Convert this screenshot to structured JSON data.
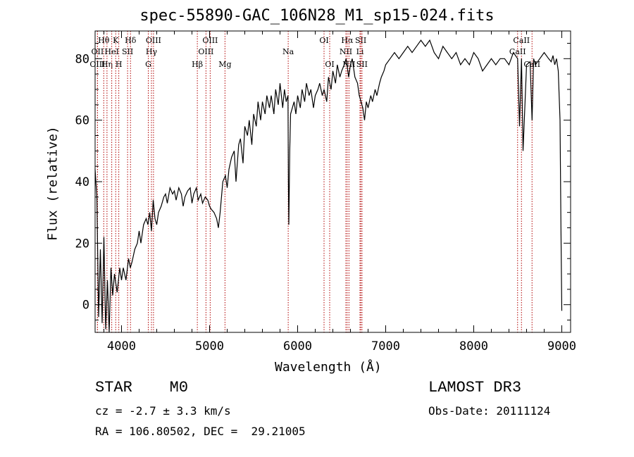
{
  "figure": {
    "title": "spec-55890-GAC_106N28_M1_sp15-024.fits",
    "classification": "STAR",
    "subclass": "M0",
    "survey": "LAMOST DR3",
    "cz": "cz = -2.7 ± 3.3 km/s",
    "obs_date": "Obs-Date: 20111124",
    "radec": "RA = 106.80502, DEC =  29.21005"
  },
  "chart_data": {
    "type": "line",
    "title": "spec-55890-GAC_106N28_M1_sp15-024.fits",
    "xlabel": "Wavelength (Å)",
    "ylabel": "Flux (relative)",
    "xlim": [
      3700,
      9100
    ],
    "ylim": [
      -9,
      89
    ],
    "xticks": [
      4000,
      5000,
      6000,
      7000,
      8000,
      9000
    ],
    "yticks": [
      0,
      20,
      40,
      60,
      80
    ],
    "series": [
      {
        "name": "flux",
        "x": [
          3700,
          3720,
          3740,
          3760,
          3780,
          3800,
          3820,
          3840,
          3860,
          3880,
          3900,
          3920,
          3950,
          3980,
          4000,
          4020,
          4050,
          4080,
          4100,
          4120,
          4150,
          4180,
          4200,
          4220,
          4250,
          4280,
          4300,
          4320,
          4340,
          4360,
          4380,
          4400,
          4420,
          4450,
          4480,
          4500,
          4520,
          4550,
          4580,
          4600,
          4620,
          4650,
          4680,
          4700,
          4720,
          4750,
          4780,
          4800,
          4820,
          4850,
          4870,
          4900,
          4920,
          4950,
          4980,
          5000,
          5020,
          5050,
          5080,
          5100,
          5120,
          5150,
          5180,
          5200,
          5220,
          5250,
          5280,
          5300,
          5330,
          5350,
          5380,
          5400,
          5430,
          5450,
          5480,
          5500,
          5530,
          5550,
          5580,
          5600,
          5630,
          5650,
          5680,
          5700,
          5730,
          5750,
          5780,
          5800,
          5830,
          5850,
          5870,
          5890,
          5895,
          5900,
          5910,
          5920,
          5940,
          5960,
          5980,
          6000,
          6030,
          6050,
          6080,
          6100,
          6130,
          6150,
          6180,
          6200,
          6230,
          6250,
          6280,
          6300,
          6330,
          6350,
          6380,
          6400,
          6430,
          6450,
          6480,
          6500,
          6530,
          6550,
          6570,
          6580,
          6600,
          6620,
          6650,
          6680,
          6700,
          6720,
          6740,
          6760,
          6780,
          6800,
          6830,
          6850,
          6880,
          6900,
          6930,
          6950,
          6980,
          7000,
          7050,
          7100,
          7150,
          7200,
          7250,
          7300,
          7350,
          7400,
          7450,
          7500,
          7550,
          7600,
          7650,
          7700,
          7750,
          7800,
          7850,
          7900,
          7950,
          8000,
          8050,
          8100,
          8150,
          8200,
          8250,
          8300,
          8350,
          8400,
          8450,
          8498,
          8520,
          8542,
          8560,
          8600,
          8640,
          8662,
          8680,
          8700,
          8750,
          8800,
          8850,
          8880,
          8900,
          8920,
          8940,
          8960,
          8980,
          8990,
          9000
        ],
        "y": [
          44,
          35,
          -4,
          18,
          -6,
          22,
          -8,
          8,
          -9,
          12,
          3,
          10,
          4,
          12,
          8,
          12,
          8,
          15,
          12,
          14,
          18,
          20,
          24,
          20,
          26,
          28,
          26,
          30,
          24,
          34,
          28,
          26,
          30,
          32,
          35,
          36,
          33,
          38,
          36,
          37,
          34,
          38,
          36,
          32,
          35,
          37,
          38,
          33,
          36,
          38,
          34,
          36,
          33,
          35,
          34,
          32,
          31,
          30,
          28,
          25,
          30,
          40,
          42,
          38,
          44,
          48,
          50,
          40,
          52,
          54,
          46,
          58,
          55,
          60,
          52,
          62,
          58,
          66,
          60,
          66,
          62,
          68,
          64,
          68,
          62,
          70,
          65,
          72,
          64,
          70,
          66,
          68,
          40,
          26,
          50,
          62,
          64,
          66,
          62,
          68,
          64,
          70,
          66,
          72,
          68,
          70,
          64,
          68,
          70,
          72,
          68,
          70,
          66,
          74,
          70,
          76,
          72,
          78,
          74,
          76,
          78,
          80,
          76,
          74,
          78,
          80,
          74,
          72,
          68,
          66,
          64,
          60,
          66,
          64,
          68,
          66,
          70,
          68,
          72,
          74,
          76,
          78,
          80,
          82,
          80,
          82,
          84,
          82,
          84,
          86,
          84,
          86,
          82,
          80,
          84,
          82,
          80,
          82,
          78,
          80,
          78,
          82,
          80,
          76,
          78,
          80,
          78,
          80,
          80,
          78,
          82,
          80,
          58,
          80,
          50,
          78,
          79,
          60,
          80,
          78,
          80,
          82,
          80,
          79,
          81,
          78,
          80,
          76,
          60,
          25,
          -2
        ]
      }
    ],
    "line_markers": [
      {
        "name": "Hθ",
        "wavelength": 3798,
        "row": 0
      },
      {
        "name": "OII",
        "wavelength": 3727,
        "row": 1
      },
      {
        "name": "OIII",
        "wavelength": 3727,
        "row": 2
      },
      {
        "name": "Hη",
        "wavelength": 3835,
        "row": 2
      },
      {
        "name": "K",
        "wavelength": 3934,
        "row": 0
      },
      {
        "name": "HeI",
        "wavelength": 3889,
        "row": 1
      },
      {
        "name": "SII",
        "wavelength": 4069,
        "row": 1
      },
      {
        "name": "H",
        "wavelength": 3969,
        "row": 2
      },
      {
        "name": "Hδ",
        "wavelength": 4102,
        "row": 0
      },
      {
        "name": "OIII",
        "wavelength": 4363,
        "row": 0
      },
      {
        "name": "Hγ",
        "wavelength": 4340,
        "row": 1
      },
      {
        "name": "G",
        "wavelength": 4304,
        "row": 2
      },
      {
        "name": "Hβ",
        "wavelength": 4861,
        "row": 2
      },
      {
        "name": "OIII",
        "wavelength": 5007,
        "row": 0
      },
      {
        "name": "OIII",
        "wavelength": 4959,
        "row": 1
      },
      {
        "name": "Mg",
        "wavelength": 5175,
        "row": 2
      },
      {
        "name": "Na",
        "wavelength": 5893,
        "row": 1
      },
      {
        "name": "OI",
        "wavelength": 6300,
        "row": 0
      },
      {
        "name": "OI",
        "wavelength": 6364,
        "row": 2
      },
      {
        "name": "Hα",
        "wavelength": 6563,
        "row": 0
      },
      {
        "name": "SII",
        "wavelength": 6717,
        "row": 0
      },
      {
        "name": "NII",
        "wavelength": 6548,
        "row": 1
      },
      {
        "name": "Li",
        "wavelength": 6708,
        "row": 1
      },
      {
        "name": "NII",
        "wavelength": 6583,
        "row": 2
      },
      {
        "name": "SII",
        "wavelength": 6731,
        "row": 2
      },
      {
        "name": "CaII",
        "wavelength": 8542,
        "row": 0
      },
      {
        "name": "CaII",
        "wavelength": 8498,
        "row": 1
      },
      {
        "name": "CaII",
        "wavelength": 8662,
        "row": 2
      }
    ]
  }
}
